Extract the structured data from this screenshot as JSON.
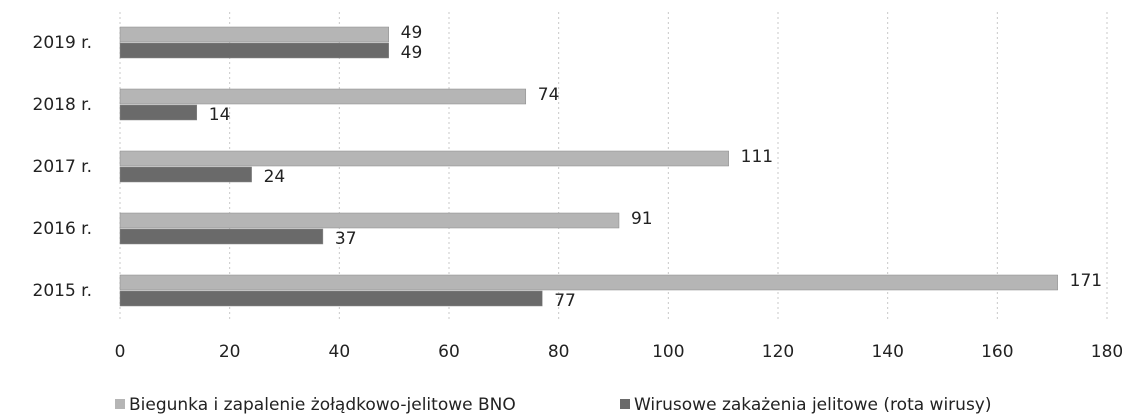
{
  "chart_data": {
    "type": "hbar",
    "categories": [
      "2019 r.",
      "2018 r.",
      "2017 r.",
      "2016 r.",
      "2015 r."
    ],
    "series": [
      {
        "name": "Biegunka i zapalenie żołądkowo-jelitowe BNO",
        "color": "#b5b5b5",
        "values": [
          49,
          74,
          111,
          91,
          171
        ]
      },
      {
        "name": "Wirusowe zakażenia jelitowe (rota wirusy)",
        "color": "#6a6a6a",
        "values": [
          49,
          14,
          24,
          37,
          77
        ]
      }
    ],
    "xlim": [
      0,
      180
    ],
    "xticks": [
      0,
      20,
      40,
      60,
      80,
      100,
      120,
      140,
      160,
      180
    ],
    "grid": true,
    "legend": "bottom"
  }
}
